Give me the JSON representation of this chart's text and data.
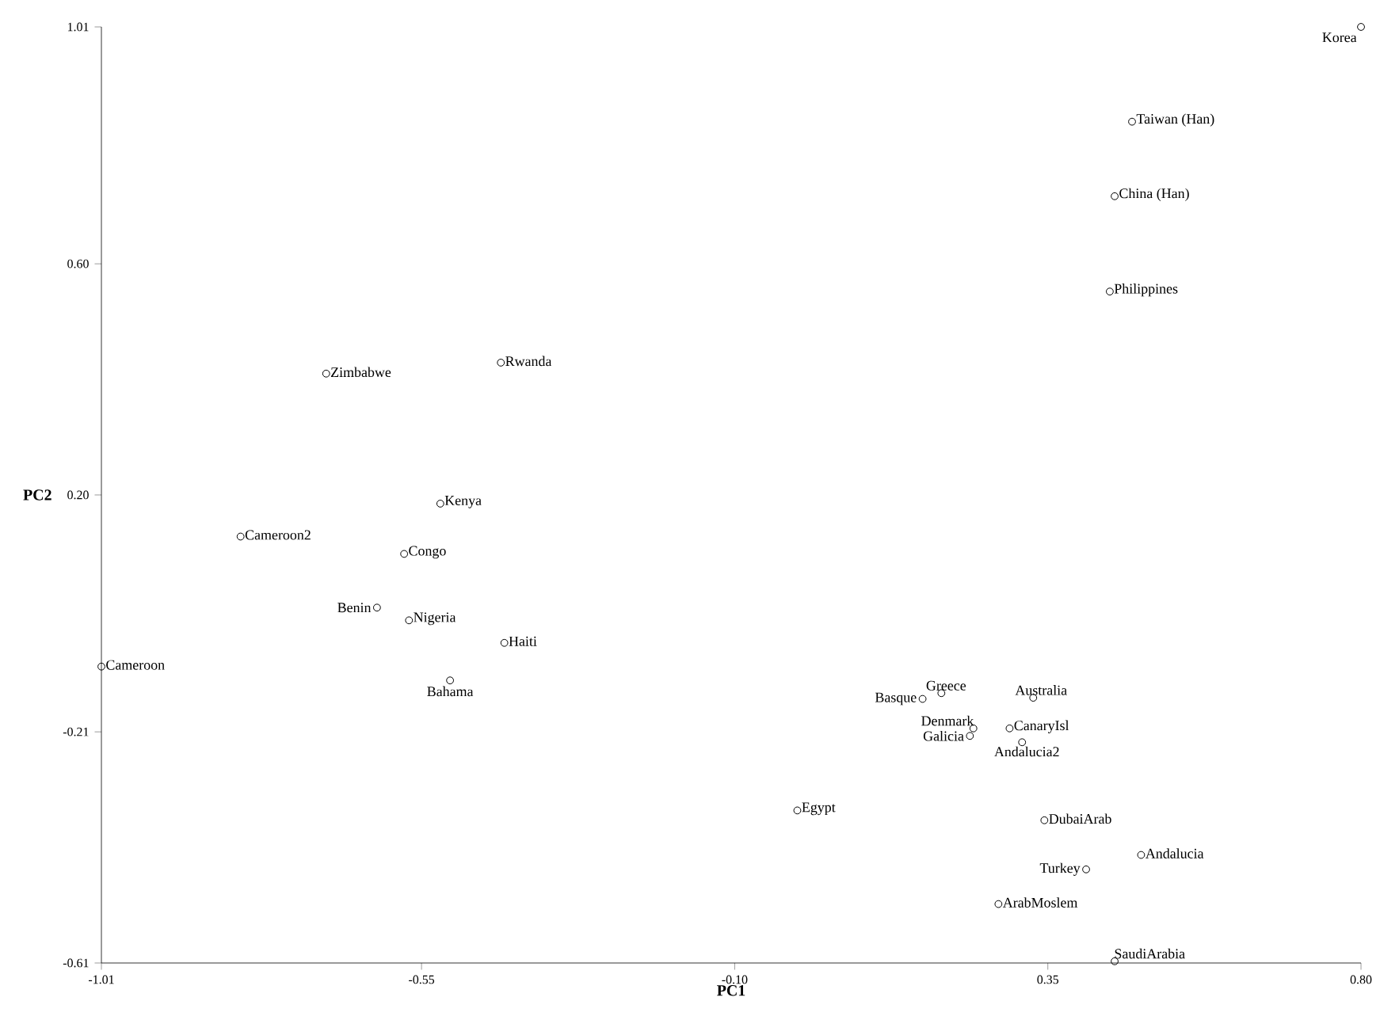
{
  "chart_data": {
    "type": "scatter",
    "xlabel": "PC1",
    "ylabel": "PC2",
    "marker": "circle",
    "xlim": [
      -1.01,
      0.8
    ],
    "ylim": [
      -0.61,
      1.01
    ],
    "xticks": [
      {
        "value": -1.01,
        "label": "-1.01"
      },
      {
        "value": -0.55,
        "label": "-0.55"
      },
      {
        "value": -0.1,
        "label": "-0.10"
      },
      {
        "value": 0.35,
        "label": "0.35"
      },
      {
        "value": 0.8,
        "label": "0.80"
      }
    ],
    "yticks": [
      {
        "value": -0.61,
        "label": "-0.61"
      },
      {
        "value": -0.21,
        "label": "-0.21"
      },
      {
        "value": 0.2,
        "label": "0.20"
      },
      {
        "value": 0.6,
        "label": "0.60"
      },
      {
        "value": 1.01,
        "label": "1.01"
      }
    ],
    "series": [
      {
        "color": "#000000",
        "x": [
          0.8,
          0.471,
          0.446,
          0.439,
          -0.436,
          -0.687,
          -0.523,
          -0.81,
          -0.575,
          -0.614,
          -0.568,
          -0.431,
          -1.01,
          -0.509,
          0.197,
          0.17,
          0.329,
          0.243,
          0.295,
          0.238,
          0.313,
          -0.01,
          0.345,
          0.484,
          0.405,
          0.279,
          0.446
        ],
        "values": [
          1.01,
          0.846,
          0.717,
          0.552,
          0.429,
          0.41,
          0.185,
          0.128,
          0.098,
          0.005,
          -0.017,
          -0.056,
          -0.097,
          -0.121,
          -0.143,
          -0.153,
          -0.151,
          -0.204,
          -0.204,
          -0.217,
          -0.228,
          -0.346,
          -0.363,
          -0.423,
          -0.448,
          -0.508,
          -0.607
        ]
      }
    ],
    "annotations": [
      {
        "text": "Korea",
        "x": 0.8,
        "y": 1.01
      },
      {
        "text": "Taiwan (Han)",
        "x": 0.471,
        "y": 0.846
      },
      {
        "text": "China (Han)",
        "x": 0.446,
        "y": 0.717
      },
      {
        "text": "Philippines",
        "x": 0.439,
        "y": 0.552
      },
      {
        "text": "Rwanda",
        "x": -0.436,
        "y": 0.429
      },
      {
        "text": "Zimbabwe",
        "x": -0.687,
        "y": 0.41
      },
      {
        "text": "Kenya",
        "x": -0.523,
        "y": 0.185
      },
      {
        "text": "Cameroon2",
        "x": -0.81,
        "y": 0.128
      },
      {
        "text": "Congo",
        "x": -0.575,
        "y": 0.098
      },
      {
        "text": "Benin",
        "x": -0.614,
        "y": 0.005
      },
      {
        "text": "Nigeria",
        "x": -0.568,
        "y": -0.017
      },
      {
        "text": "Haiti",
        "x": -0.431,
        "y": -0.056
      },
      {
        "text": "Cameroon",
        "x": -1.01,
        "y": -0.097
      },
      {
        "text": "Bahama",
        "x": -0.509,
        "y": -0.121
      },
      {
        "text": "Greece",
        "x": 0.197,
        "y": -0.143
      },
      {
        "text": "Basque",
        "x": 0.17,
        "y": -0.153
      },
      {
        "text": "Australia",
        "x": 0.329,
        "y": -0.151
      },
      {
        "text": "Denmark",
        "x": 0.243,
        "y": -0.204
      },
      {
        "text": "CanaryIsl",
        "x": 0.295,
        "y": -0.204
      },
      {
        "text": "Galicia",
        "x": 0.238,
        "y": -0.217
      },
      {
        "text": "Andalucia2",
        "x": 0.313,
        "y": -0.228
      },
      {
        "text": "Egypt",
        "x": -0.01,
        "y": -0.346
      },
      {
        "text": "DubaiArab",
        "x": 0.345,
        "y": -0.363
      },
      {
        "text": "Andalucia",
        "x": 0.484,
        "y": -0.423
      },
      {
        "text": "Turkey",
        "x": 0.405,
        "y": -0.448
      },
      {
        "text": "ArabMoslem",
        "x": 0.279,
        "y": -0.508
      },
      {
        "text": "SaudiArabia",
        "x": 0.446,
        "y": -0.607
      }
    ]
  }
}
